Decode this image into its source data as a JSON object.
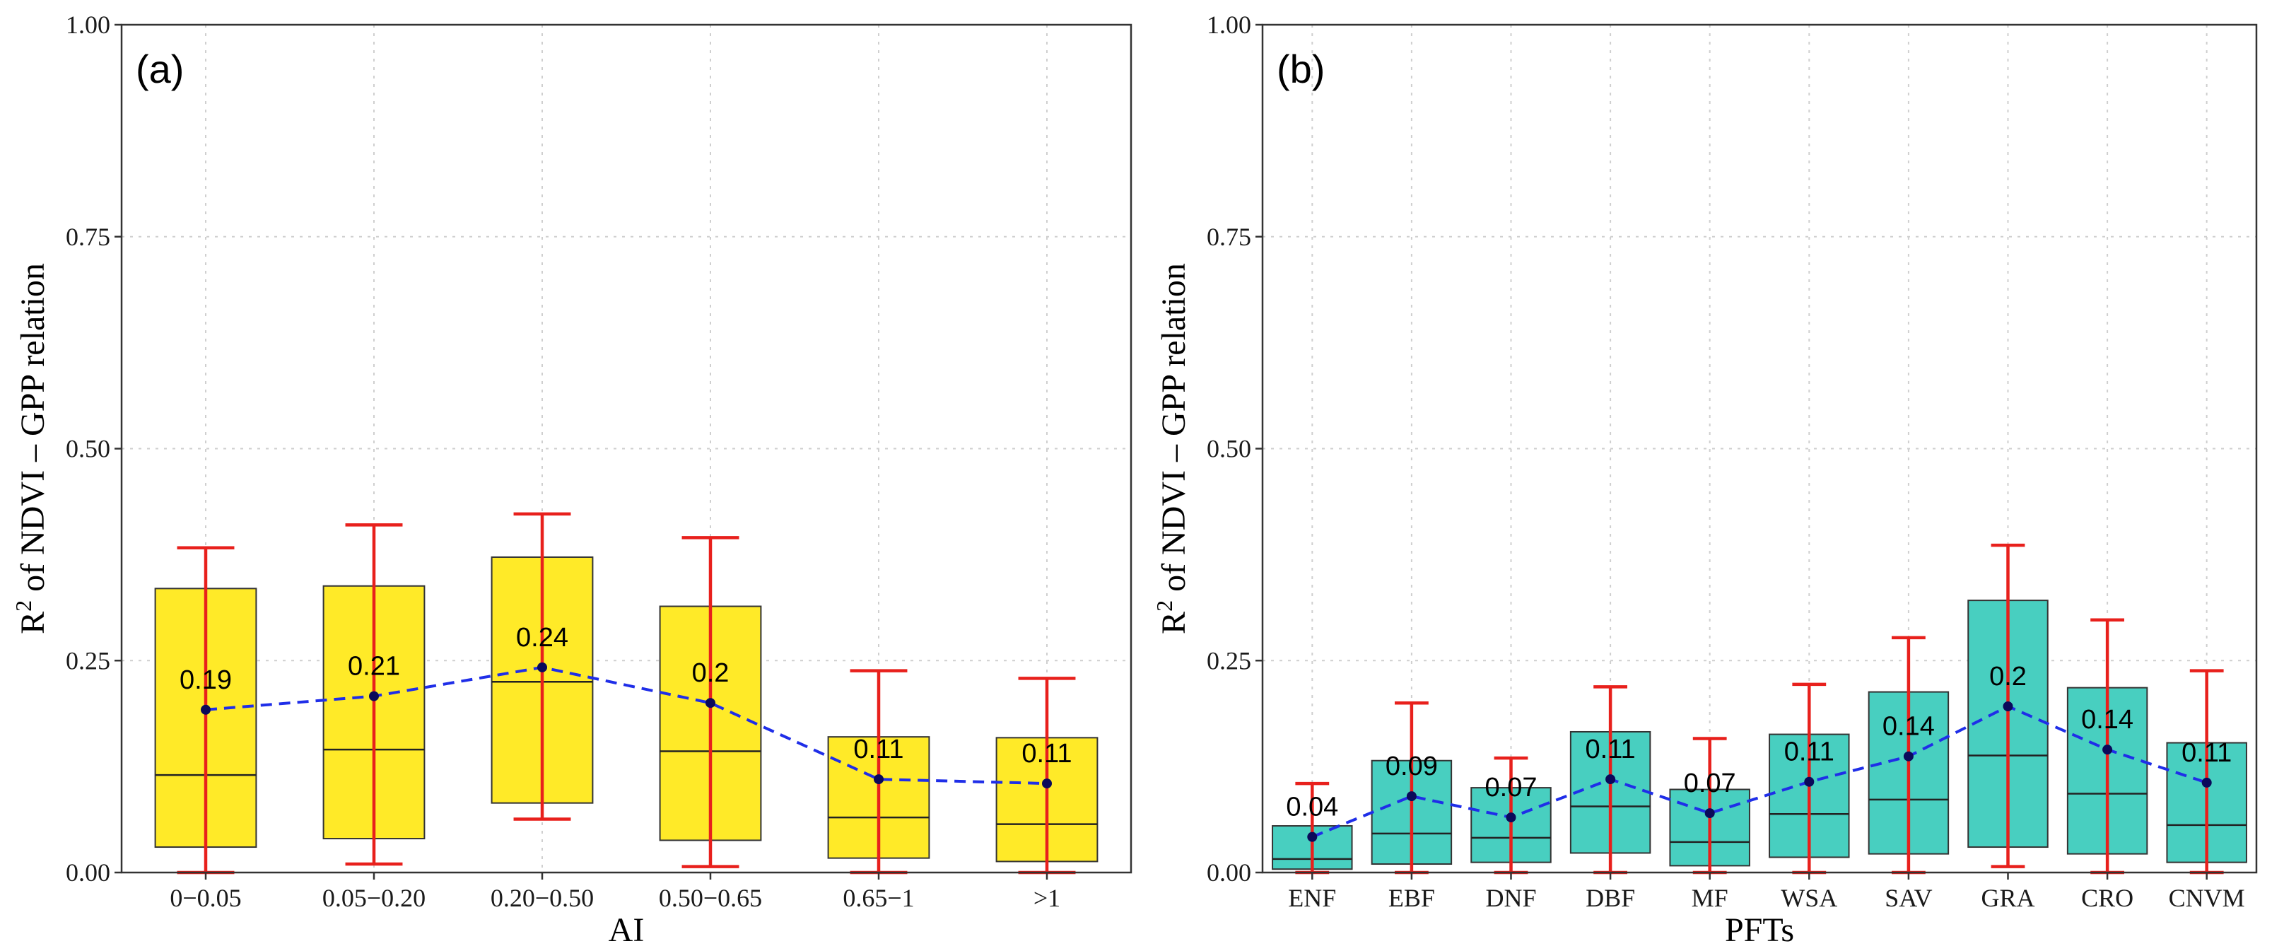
{
  "colors": {
    "box_a": "#FFEA28",
    "box_b": "#48CFC0",
    "whisker": "#E8201C",
    "mean_line": "#1F2EE8",
    "mean_point": "#0A0A5A",
    "grid": "#CFCFCF"
  },
  "chart_data": [
    {
      "type": "box",
      "panel_label": "(a)",
      "title": "",
      "xlabel": "AI",
      "ylabel": "R² of NDVI – GPP relation",
      "ylabel_parts": {
        "r": "R",
        "sup": "2",
        "rest": " of NDVI – GPP relation"
      },
      "ylim": [
        0,
        1
      ],
      "yticks": [
        0,
        0.25,
        0.5,
        0.75,
        1
      ],
      "ytick_labels": [
        "0.00",
        "0.25",
        "0.50",
        "0.75",
        "1.00"
      ],
      "grid": true,
      "categories": [
        "0−0.05",
        "0.05−0.20",
        "0.20−0.50",
        "0.50−0.65",
        "0.65−1",
        ">1"
      ],
      "boxes": [
        {
          "whisker_low": 0.0,
          "q1": 0.03,
          "median": 0.115,
          "q3": 0.335,
          "whisker_high": 0.383,
          "mean": 0.192,
          "mean_label": "0.19"
        },
        {
          "whisker_low": 0.01,
          "q1": 0.04,
          "median": 0.145,
          "q3": 0.338,
          "whisker_high": 0.41,
          "mean": 0.208,
          "mean_label": "0.21"
        },
        {
          "whisker_low": 0.063,
          "q1": 0.082,
          "median": 0.225,
          "q3": 0.372,
          "whisker_high": 0.423,
          "mean": 0.242,
          "mean_label": "0.24"
        },
        {
          "whisker_low": 0.007,
          "q1": 0.038,
          "median": 0.143,
          "q3": 0.314,
          "whisker_high": 0.395,
          "mean": 0.2,
          "mean_label": "0.2"
        },
        {
          "whisker_low": 0.0,
          "q1": 0.017,
          "median": 0.065,
          "q3": 0.16,
          "whisker_high": 0.238,
          "mean": 0.11,
          "mean_label": "0.11"
        },
        {
          "whisker_low": 0.0,
          "q1": 0.013,
          "median": 0.057,
          "q3": 0.159,
          "whisker_high": 0.229,
          "mean": 0.105,
          "mean_label": "0.11"
        }
      ]
    },
    {
      "type": "box",
      "panel_label": "(b)",
      "title": "",
      "xlabel": "PFTs",
      "ylabel": "R² of NDVI – GPP relation",
      "ylabel_parts": {
        "r": "R",
        "sup": "2",
        "rest": " of NDVI – GPP relation"
      },
      "ylim": [
        0,
        1
      ],
      "yticks": [
        0,
        0.25,
        0.5,
        0.75,
        1
      ],
      "ytick_labels": [
        "0.00",
        "0.25",
        "0.50",
        "0.75",
        "1.00"
      ],
      "grid": true,
      "categories": [
        "ENF",
        "EBF",
        "DNF",
        "DBF",
        "MF",
        "WSA",
        "SAV",
        "GRA",
        "CRO",
        "CNVM"
      ],
      "boxes": [
        {
          "whisker_low": 0.0,
          "q1": 0.004,
          "median": 0.016,
          "q3": 0.055,
          "whisker_high": 0.105,
          "mean": 0.042,
          "mean_label": "0.04"
        },
        {
          "whisker_low": 0.0,
          "q1": 0.01,
          "median": 0.046,
          "q3": 0.132,
          "whisker_high": 0.2,
          "mean": 0.09,
          "mean_label": "0.09"
        },
        {
          "whisker_low": 0.0,
          "q1": 0.012,
          "median": 0.041,
          "q3": 0.1,
          "whisker_high": 0.135,
          "mean": 0.065,
          "mean_label": "0.07"
        },
        {
          "whisker_low": 0.0,
          "q1": 0.023,
          "median": 0.078,
          "q3": 0.166,
          "whisker_high": 0.219,
          "mean": 0.11,
          "mean_label": "0.11"
        },
        {
          "whisker_low": 0.0,
          "q1": 0.008,
          "median": 0.036,
          "q3": 0.098,
          "whisker_high": 0.158,
          "mean": 0.07,
          "mean_label": "0.07"
        },
        {
          "whisker_low": 0.0,
          "q1": 0.018,
          "median": 0.069,
          "q3": 0.163,
          "whisker_high": 0.222,
          "mean": 0.107,
          "mean_label": "0.11"
        },
        {
          "whisker_low": 0.0,
          "q1": 0.022,
          "median": 0.086,
          "q3": 0.213,
          "whisker_high": 0.277,
          "mean": 0.137,
          "mean_label": "0.14"
        },
        {
          "whisker_low": 0.007,
          "q1": 0.03,
          "median": 0.138,
          "q3": 0.321,
          "whisker_high": 0.386,
          "mean": 0.196,
          "mean_label": "0.2"
        },
        {
          "whisker_low": 0.0,
          "q1": 0.022,
          "median": 0.093,
          "q3": 0.218,
          "whisker_high": 0.298,
          "mean": 0.145,
          "mean_label": "0.14"
        },
        {
          "whisker_low": 0.0,
          "q1": 0.012,
          "median": 0.056,
          "q3": 0.153,
          "whisker_high": 0.238,
          "mean": 0.106,
          "mean_label": "0.11"
        }
      ]
    }
  ]
}
